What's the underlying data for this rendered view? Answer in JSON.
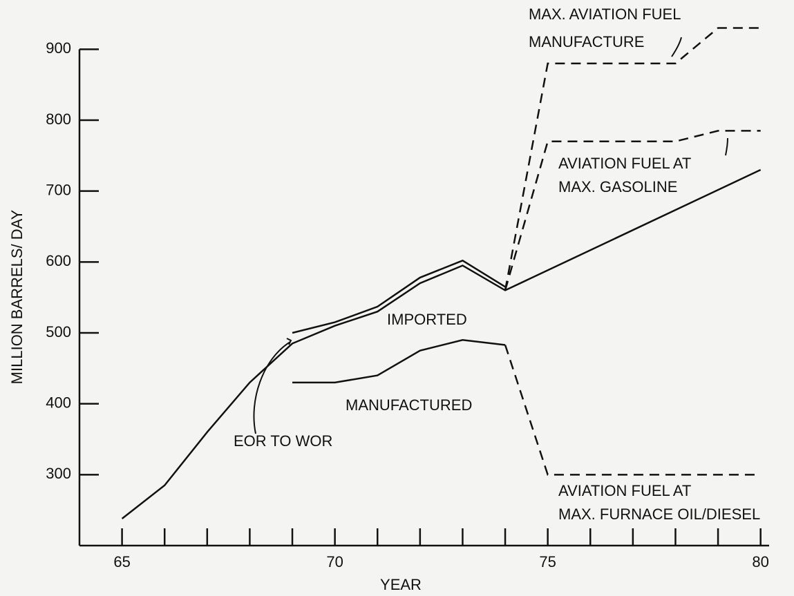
{
  "chart_data": {
    "type": "line",
    "x_label": "YEAR",
    "y_label": "MILLION BARRELS/ DAY",
    "xlim": [
      64,
      80.2
    ],
    "ylim": [
      200,
      950
    ],
    "xticks": [
      65,
      70,
      75,
      80
    ],
    "minor_xticks": [
      66,
      67,
      68,
      69,
      71,
      72,
      73,
      74,
      76,
      77,
      78,
      79
    ],
    "yticks": [
      300,
      400,
      500,
      600,
      700,
      800,
      900
    ],
    "color": "#111111",
    "series": [
      {
        "x": [
          65,
          66,
          67,
          68,
          69,
          70,
          71,
          72,
          73,
          74,
          80
        ],
        "values": [
          238,
          285,
          360,
          430,
          485,
          510,
          530,
          570,
          595,
          560,
          730
        ],
        "dash": false
      },
      {
        "x": [
          69,
          70,
          71,
          72,
          73,
          74
        ],
        "values": [
          500,
          515,
          537,
          578,
          602,
          565
        ],
        "dash": false
      },
      {
        "x": [
          69,
          70,
          71,
          72,
          73,
          74
        ],
        "values": [
          430,
          430,
          440,
          475,
          490,
          483
        ],
        "dash": false
      },
      {
        "x": [
          74,
          75,
          78,
          79,
          80
        ],
        "values": [
          560,
          880,
          880,
          930,
          930
        ],
        "dash": true
      },
      {
        "x": [
          74,
          75,
          78,
          79,
          80
        ],
        "values": [
          560,
          770,
          770,
          785,
          785
        ],
        "dash": true
      },
      {
        "x": [
          74,
          75,
          80
        ],
        "values": [
          483,
          300,
          300
        ],
        "dash": true
      }
    ],
    "annotations": [
      "MAX. AVIATION FUEL",
      "MANUFACTURE",
      "AVIATION FUEL AT",
      "MAX. GASOLINE",
      "IMPORTED",
      "MANUFACTURED",
      "EOR TO WOR",
      "AVIATION FUEL AT",
      "MAX. FURNACE OIL/DIESEL"
    ]
  }
}
